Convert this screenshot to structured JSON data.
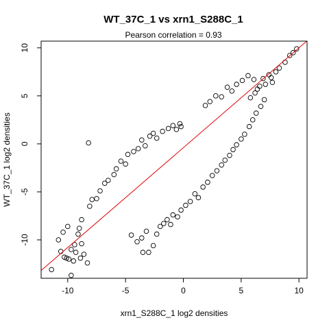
{
  "chart_data": {
    "type": "scatter",
    "title": "WT_37C_1 vs xrn1_S288C_1",
    "subtitle_prefix": "Pearson correlation = ",
    "subtitle_value": "0.93",
    "xlabel": "xrn1_S288C_1 log2 densities",
    "ylabel": "WT_37C_1 log2 densities",
    "xlim": [
      -12.3,
      10.7
    ],
    "ylim": [
      -14.0,
      10.7
    ],
    "xticks": [
      -10,
      -5,
      0,
      5,
      10
    ],
    "yticks": [
      -10,
      -5,
      0,
      5,
      10
    ],
    "xtick_labels": [
      "-10",
      "-5",
      "0",
      "5",
      "10"
    ],
    "ytick_labels": [
      "-10",
      "-5",
      "0",
      "5",
      "10"
    ],
    "grid": false,
    "marker": "open-circle",
    "point_color": "#000000",
    "fit_line": {
      "color": "#e00000",
      "intercept": -0.4,
      "slope": 1.04
    },
    "points": [
      [
        -11.4,
        -13.1
      ],
      [
        -10.3,
        -11.8
      ],
      [
        -9.9,
        -12.0
      ],
      [
        -10.6,
        -11.2
      ],
      [
        -10.1,
        -11.9
      ],
      [
        -10.8,
        -10.0
      ],
      [
        -10.0,
        -8.6
      ],
      [
        -10.4,
        -9.2
      ],
      [
        -9.7,
        -11.0
      ],
      [
        -9.3,
        -11.3
      ],
      [
        -9.7,
        -13.7
      ],
      [
        -9.5,
        -12.2
      ],
      [
        -8.9,
        -11.9
      ],
      [
        -9.4,
        -10.5
      ],
      [
        -9.1,
        -9.4
      ],
      [
        -8.8,
        -10.4
      ],
      [
        -9.0,
        -8.8
      ],
      [
        -8.6,
        -11.5
      ],
      [
        -8.3,
        -12.4
      ],
      [
        -8.8,
        -7.9
      ],
      [
        -8.2,
        0.1
      ],
      [
        -8.1,
        -6.5
      ],
      [
        -7.9,
        -5.8
      ],
      [
        -7.5,
        -5.7
      ],
      [
        -7.2,
        -4.9
      ],
      [
        -6.8,
        -4.1
      ],
      [
        -6.5,
        -3.8
      ],
      [
        -6.0,
        -3.2
      ],
      [
        -5.8,
        -2.6
      ],
      [
        -5.4,
        -1.8
      ],
      [
        -5.0,
        -2.1
      ],
      [
        -4.8,
        -1.1
      ],
      [
        -4.3,
        -0.8
      ],
      [
        -3.9,
        -0.5
      ],
      [
        -3.6,
        0.4
      ],
      [
        -3.3,
        -0.2
      ],
      [
        -2.9,
        0.8
      ],
      [
        -2.6,
        1.1
      ],
      [
        -2.3,
        0.6
      ],
      [
        -1.8,
        1.3
      ],
      [
        -1.3,
        1.6
      ],
      [
        -0.9,
        1.9
      ],
      [
        -0.6,
        1.5
      ],
      [
        -0.3,
        2.1
      ],
      [
        -0.2,
        1.8
      ],
      [
        -4.5,
        -9.5
      ],
      [
        -4.0,
        -10.2
      ],
      [
        -3.6,
        -9.8
      ],
      [
        -3.2,
        -9.1
      ],
      [
        -3.0,
        -11.3
      ],
      [
        -2.6,
        -10.6
      ],
      [
        -2.3,
        -9.4
      ],
      [
        -3.5,
        -11.3
      ],
      [
        -2.0,
        -8.6
      ],
      [
        -1.7,
        -8.3
      ],
      [
        -1.4,
        -7.9
      ],
      [
        -1.1,
        -8.4
      ],
      [
        -0.9,
        -7.4
      ],
      [
        -0.5,
        -7.6
      ],
      [
        -0.2,
        -6.9
      ],
      [
        0.2,
        -6.4
      ],
      [
        0.6,
        -6.0
      ],
      [
        1.0,
        -5.2
      ],
      [
        1.3,
        -5.6
      ],
      [
        1.7,
        -4.5
      ],
      [
        2.1,
        -4.0
      ],
      [
        2.5,
        -3.3
      ],
      [
        2.9,
        -2.8
      ],
      [
        3.3,
        -2.2
      ],
      [
        3.6,
        -1.7
      ],
      [
        4.0,
        -1.2
      ],
      [
        4.3,
        -0.6
      ],
      [
        4.6,
        -0.1
      ],
      [
        5.0,
        0.5
      ],
      [
        5.3,
        1.0
      ],
      [
        5.7,
        1.8
      ],
      [
        6.0,
        2.5
      ],
      [
        6.3,
        3.2
      ],
      [
        6.7,
        3.9
      ],
      [
        7.0,
        4.6
      ],
      [
        6.2,
        5.3
      ],
      [
        6.6,
        6.0
      ],
      [
        6.9,
        6.8
      ],
      [
        7.4,
        7.2
      ],
      [
        7.7,
        6.4
      ],
      [
        8.0,
        7.5
      ],
      [
        8.3,
        7.9
      ],
      [
        8.8,
        8.5
      ],
      [
        9.2,
        9.2
      ],
      [
        9.5,
        9.5
      ],
      [
        9.8,
        9.9
      ],
      [
        5.6,
        7.1
      ],
      [
        5.1,
        6.6
      ],
      [
        4.6,
        6.2
      ],
      [
        4.2,
        5.5
      ],
      [
        3.8,
        5.9
      ],
      [
        3.3,
        4.9
      ],
      [
        2.8,
        5.0
      ],
      [
        2.3,
        4.4
      ],
      [
        1.9,
        4.0
      ],
      [
        6.1,
        6.7
      ],
      [
        6.4,
        5.7
      ],
      [
        7.1,
        6.2
      ],
      [
        5.8,
        4.8
      ],
      [
        7.6,
        6.9
      ]
    ]
  }
}
